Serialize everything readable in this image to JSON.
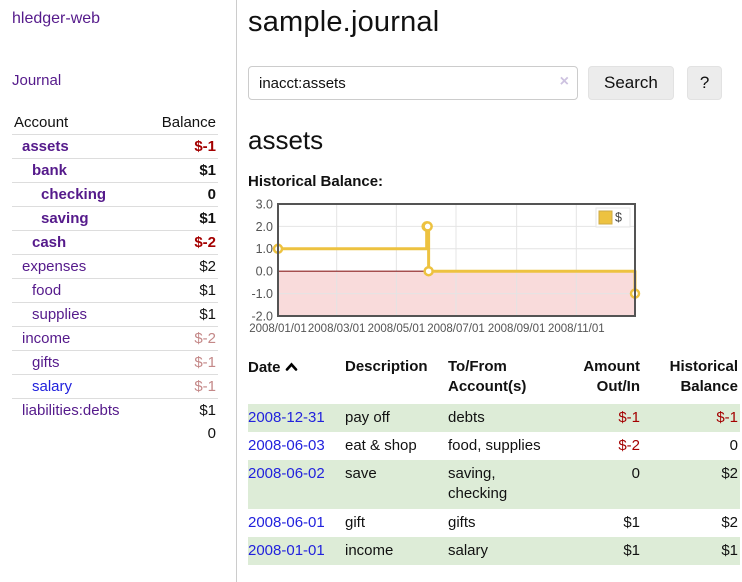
{
  "brand": "hledger-web",
  "colors": {
    "link_purple": "#551a8b",
    "link_blue": "#2222dd",
    "negative_red": "#a40000",
    "faded_negative": "#c48888",
    "row_stripe_green": "#ddecd7",
    "series_yellow": "#edc240",
    "negative_region_pink": "#f9dbdb",
    "zero_line_red": "#8b2020"
  },
  "sidebar": {
    "journal_link": "Journal",
    "accounts": {
      "headers": {
        "account": "Account",
        "balance": "Balance"
      },
      "rows": [
        {
          "name": "assets",
          "balance": "$-1",
          "indent": 1,
          "bold": true
        },
        {
          "name": "bank",
          "balance": "$1",
          "indent": 2,
          "bold": true
        },
        {
          "name": "checking",
          "balance": "0",
          "indent": 3,
          "bold": true
        },
        {
          "name": "saving",
          "balance": "$1",
          "indent": 3,
          "bold": true
        },
        {
          "name": "cash",
          "balance": "$-2",
          "indent": 2,
          "bold": true
        },
        {
          "name": "expenses",
          "balance": "$2",
          "indent": 1,
          "bold": false
        },
        {
          "name": "food",
          "balance": "$1",
          "indent": 2,
          "bold": false
        },
        {
          "name": "supplies",
          "balance": "$1",
          "indent": 2,
          "bold": false
        },
        {
          "name": "income",
          "balance": "$-2",
          "indent": 1,
          "bold": false
        },
        {
          "name": "gifts",
          "balance": "$-1",
          "indent": 2,
          "bold": false
        },
        {
          "name": "salary",
          "balance": "$-1",
          "indent": 2,
          "bold": false
        },
        {
          "name": "liabilities:debts",
          "balance": "$1",
          "indent": 1,
          "bold": false
        }
      ],
      "total": "0"
    }
  },
  "header": {
    "title": "sample.journal"
  },
  "search": {
    "value": "inacct:assets",
    "clear_icon": "×",
    "button_label": "Search",
    "help_label": "?"
  },
  "account_page": {
    "heading": "assets",
    "chart_label": "Historical Balance:"
  },
  "chart_data": {
    "type": "line",
    "step": true,
    "title": "Historical Balance",
    "xlabel": "",
    "ylabel": "",
    "ylim": [
      -2,
      3
    ],
    "ytick_labels": [
      "3.0",
      "2.0",
      "1.0",
      "0.0",
      "-1.0",
      "-2.0"
    ],
    "ytick_values": [
      3,
      2,
      1,
      0,
      -1,
      -2
    ],
    "xtick_labels": [
      "2008/01/01",
      "2008/03/01",
      "2008/05/01",
      "2008/07/01",
      "2008/09/01",
      "2008/11/01"
    ],
    "grid": true,
    "legend_position": "top-right",
    "series": [
      {
        "name": "$",
        "color": "#edc240",
        "points": [
          {
            "x": "2008/01/01",
            "y": 1
          },
          {
            "x": "2008/06/01",
            "y": 2
          },
          {
            "x": "2008/06/02",
            "y": 2
          },
          {
            "x": "2008/06/03",
            "y": 0
          },
          {
            "x": "2008/12/31",
            "y": -1
          }
        ]
      }
    ],
    "negative_region_color": "#f9dbdb",
    "zero_line_color": "#8b2020"
  },
  "transactions": {
    "headers": {
      "date": "Date",
      "sort_icon": "chevron-up",
      "description": "Description",
      "accounts": "To/From Account(s)",
      "amount": "Amount Out/In",
      "balance": "Historical Balance"
    },
    "rows": [
      {
        "date": "2008-12-31",
        "description": "pay off",
        "accounts": "debts",
        "amount": "$-1",
        "balance": "$-1"
      },
      {
        "date": "2008-06-03",
        "description": "eat & shop",
        "accounts": "food, supplies",
        "amount": "$-2",
        "balance": "0"
      },
      {
        "date": "2008-06-02",
        "description": "save",
        "accounts": "saving, checking",
        "amount": "0",
        "balance": "$2"
      },
      {
        "date": "2008-06-01",
        "description": "gift",
        "accounts": "gifts",
        "amount": "$1",
        "balance": "$2"
      },
      {
        "date": "2008-01-01",
        "description": "income",
        "accounts": "salary",
        "amount": "$1",
        "balance": "$1"
      }
    ]
  }
}
